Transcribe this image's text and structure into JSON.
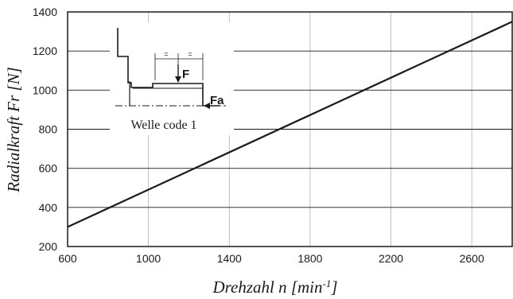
{
  "chart_data": {
    "type": "line",
    "xlabel": "Drehzahl n [min",
    "xlabel_sup": "-1",
    "xlabel_end": "]",
    "ylabel": "Radialkraft Fr [N]",
    "xlim": [
      600,
      2800
    ],
    "ylim": [
      200,
      1400
    ],
    "x_ticks": [
      "600",
      "1000",
      "1400",
      "1800",
      "2200",
      "2600"
    ],
    "y_ticks": [
      "200",
      "400",
      "600",
      "800",
      "1000",
      "1200",
      "1400"
    ],
    "grid": true,
    "series": [
      {
        "x": [
          600,
          2800
        ],
        "y": [
          300,
          1350
        ]
      }
    ],
    "annotations": {
      "inset_caption": "Welle code 1",
      "force_label": "F",
      "axial_force_label": "Fa",
      "equal_mark_1": "=",
      "equal_mark_2": "="
    }
  },
  "colors": {
    "line": "#1a1a1a",
    "grid": "#b0b0b0",
    "frame": "#1a1a1a"
  }
}
